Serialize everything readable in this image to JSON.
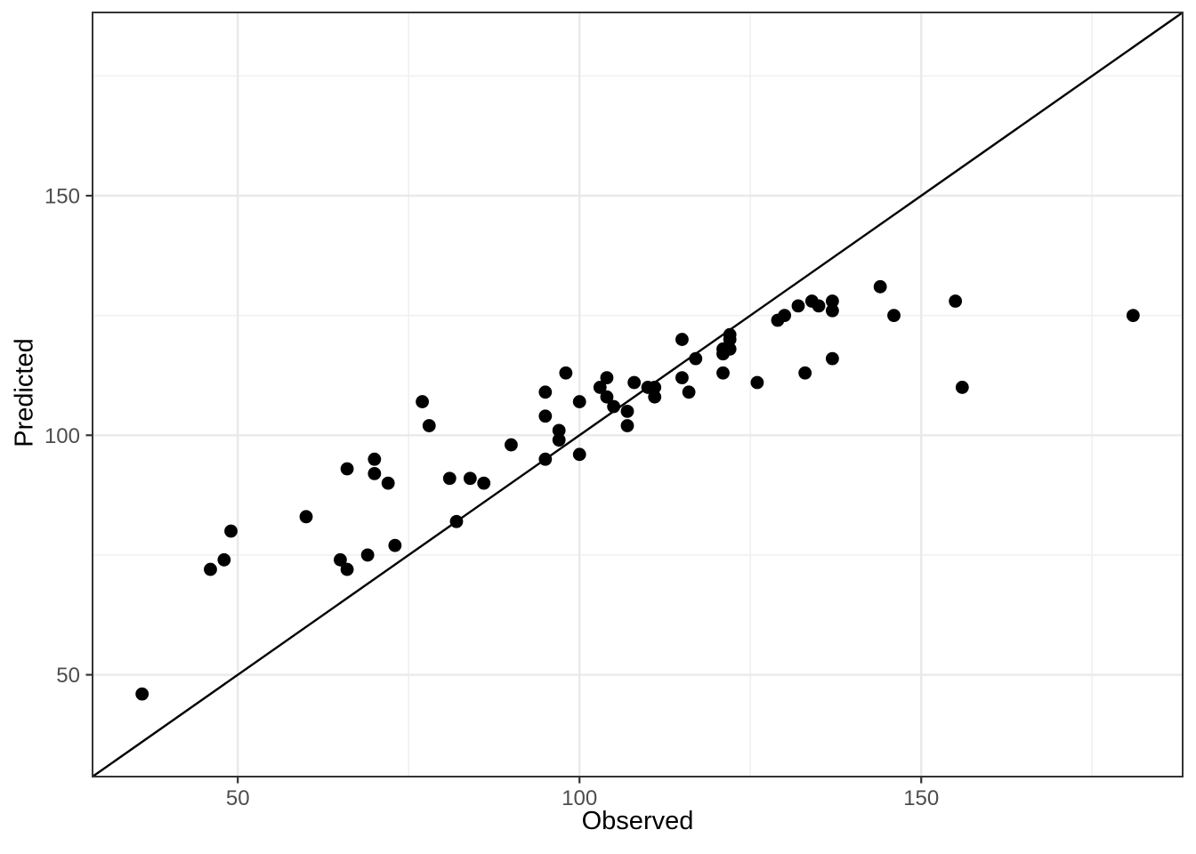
{
  "chart_data": {
    "type": "scatter",
    "title": "",
    "xlabel": "Observed",
    "ylabel": "Predicted",
    "x_range": [
      28.75,
      188.25
    ],
    "y_range": [
      28.75,
      188.25
    ],
    "x_major_ticks": [
      50,
      100,
      150
    ],
    "y_major_ticks": [
      50,
      100,
      150
    ],
    "x_minor_ticks": [
      75,
      125,
      175
    ],
    "y_minor_ticks": [
      75,
      125,
      175
    ],
    "grid": "on",
    "legend_position": "none",
    "reference_line": {
      "kind": "identity",
      "slope": 1,
      "intercept": 0
    },
    "points": [
      {
        "observed": 36,
        "predicted": 46
      },
      {
        "observed": 46,
        "predicted": 72
      },
      {
        "observed": 48,
        "predicted": 74
      },
      {
        "observed": 49,
        "predicted": 80
      },
      {
        "observed": 60,
        "predicted": 83
      },
      {
        "observed": 65,
        "predicted": 74
      },
      {
        "observed": 66,
        "predicted": 72
      },
      {
        "observed": 66,
        "predicted": 93
      },
      {
        "observed": 69,
        "predicted": 75
      },
      {
        "observed": 70,
        "predicted": 92
      },
      {
        "observed": 70,
        "predicted": 95
      },
      {
        "observed": 72,
        "predicted": 90
      },
      {
        "observed": 73,
        "predicted": 77
      },
      {
        "observed": 77,
        "predicted": 107
      },
      {
        "observed": 78,
        "predicted": 102
      },
      {
        "observed": 81,
        "predicted": 91
      },
      {
        "observed": 82,
        "predicted": 82
      },
      {
        "observed": 84,
        "predicted": 91
      },
      {
        "observed": 86,
        "predicted": 90
      },
      {
        "observed": 90,
        "predicted": 98
      },
      {
        "observed": 95,
        "predicted": 95
      },
      {
        "observed": 95,
        "predicted": 104
      },
      {
        "observed": 95,
        "predicted": 109
      },
      {
        "observed": 97,
        "predicted": 99
      },
      {
        "observed": 97,
        "predicted": 101
      },
      {
        "observed": 98,
        "predicted": 113
      },
      {
        "observed": 100,
        "predicted": 96
      },
      {
        "observed": 100,
        "predicted": 107
      },
      {
        "observed": 103,
        "predicted": 110
      },
      {
        "observed": 104,
        "predicted": 108
      },
      {
        "observed": 104,
        "predicted": 112
      },
      {
        "observed": 105,
        "predicted": 106
      },
      {
        "observed": 107,
        "predicted": 102
      },
      {
        "observed": 107,
        "predicted": 105
      },
      {
        "observed": 108,
        "predicted": 111
      },
      {
        "observed": 110,
        "predicted": 110
      },
      {
        "observed": 111,
        "predicted": 108
      },
      {
        "observed": 111,
        "predicted": 110
      },
      {
        "observed": 115,
        "predicted": 112
      },
      {
        "observed": 115,
        "predicted": 120
      },
      {
        "observed": 116,
        "predicted": 109
      },
      {
        "observed": 117,
        "predicted": 116
      },
      {
        "observed": 121,
        "predicted": 113
      },
      {
        "observed": 121,
        "predicted": 117
      },
      {
        "observed": 121,
        "predicted": 118
      },
      {
        "observed": 122,
        "predicted": 118
      },
      {
        "observed": 122,
        "predicted": 120
      },
      {
        "observed": 122,
        "predicted": 121
      },
      {
        "observed": 126,
        "predicted": 111
      },
      {
        "observed": 129,
        "predicted": 124
      },
      {
        "observed": 130,
        "predicted": 125
      },
      {
        "observed": 132,
        "predicted": 127
      },
      {
        "observed": 133,
        "predicted": 113
      },
      {
        "observed": 134,
        "predicted": 128
      },
      {
        "observed": 135,
        "predicted": 127
      },
      {
        "observed": 137,
        "predicted": 116
      },
      {
        "observed": 137,
        "predicted": 126
      },
      {
        "observed": 137,
        "predicted": 128
      },
      {
        "observed": 144,
        "predicted": 131
      },
      {
        "observed": 146,
        "predicted": 125
      },
      {
        "observed": 155,
        "predicted": 128
      },
      {
        "observed": 156,
        "predicted": 110
      },
      {
        "observed": 181,
        "predicted": 125
      }
    ],
    "styles": {
      "point_color": "#000000",
      "line_color": "#000000",
      "grid_major_color": "#E9E9E9",
      "grid_minor_color": "#F0F0F0",
      "panel_border_color": "#333333",
      "tick_color": "#333333",
      "tick_label_color": "#4D4D4D",
      "axis_title_color": "#000000",
      "background_color": "#FFFFFF"
    }
  }
}
